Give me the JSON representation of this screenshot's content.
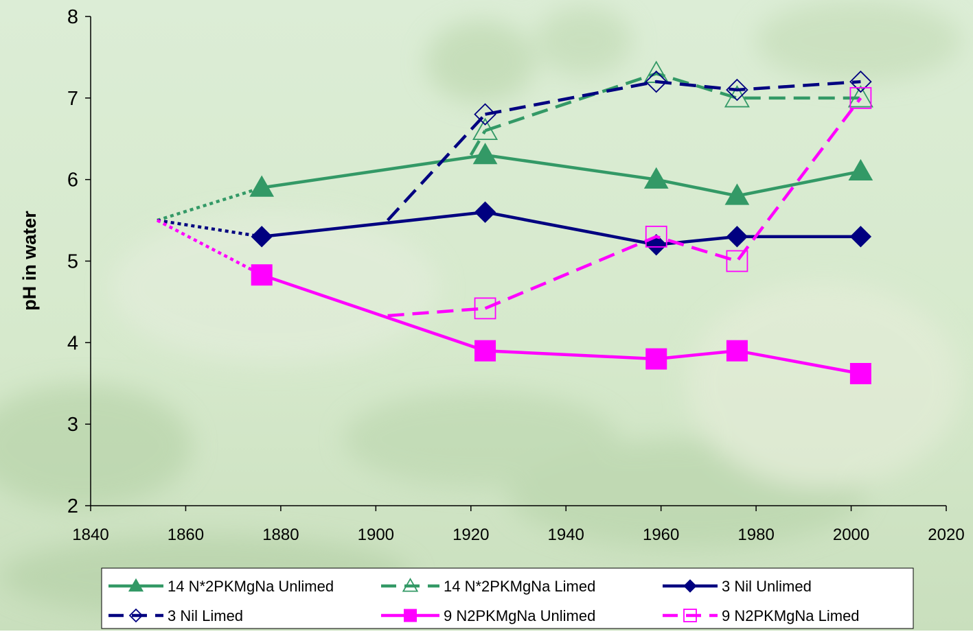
{
  "chart_data": {
    "type": "line",
    "ylabel": "pH in water",
    "xlim": [
      1840,
      2020
    ],
    "xticks": [
      1840,
      1860,
      1880,
      1900,
      1920,
      1940,
      1960,
      1980,
      2000,
      2020
    ],
    "ylim": [
      2,
      8
    ],
    "yticks": [
      2,
      3,
      4,
      5,
      6,
      7,
      8
    ],
    "grid": false,
    "legend": "bottom",
    "series": [
      {
        "name": "14 N*2PKMgNa Unlimed",
        "color": "#339966",
        "marker": "triangle",
        "filled": true,
        "dash": "solid",
        "lead_in": "dotted",
        "x": [
          1854,
          1876,
          1923,
          1959,
          1976,
          2002
        ],
        "values": [
          5.5,
          5.9,
          6.3,
          6.0,
          5.8,
          6.1
        ]
      },
      {
        "name": "14 N*2PKMgNa Limed",
        "color": "#339966",
        "marker": "triangle",
        "filled": false,
        "dash": "dashed",
        "lead_in": "dashed",
        "x": [
          1920,
          1923,
          1959,
          1976,
          2002
        ],
        "values": [
          6.3,
          6.6,
          7.3,
          7.0,
          7.0
        ]
      },
      {
        "name": "3 Nil Unlimed",
        "color": "#000080",
        "marker": "diamond",
        "filled": true,
        "dash": "solid",
        "lead_in": "dotted",
        "x": [
          1854,
          1876,
          1923,
          1959,
          1976,
          2002
        ],
        "values": [
          5.5,
          5.3,
          5.6,
          5.2,
          5.3,
          5.3
        ]
      },
      {
        "name": "3 Nil Limed",
        "color": "#000080",
        "marker": "diamond",
        "filled": false,
        "dash": "dashed",
        "lead_in": "dashed",
        "x": [
          1902.5,
          1923,
          1959,
          1976,
          2002
        ],
        "values": [
          5.5,
          6.8,
          7.2,
          7.1,
          7.2
        ]
      },
      {
        "name": "9 N2PKMgNa Unlimed",
        "color": "#ff00ff",
        "marker": "square",
        "filled": true,
        "dash": "solid",
        "lead_in": "dotted",
        "x": [
          1854,
          1876,
          1923,
          1959,
          1976,
          2002
        ],
        "values": [
          5.5,
          4.83,
          3.9,
          3.8,
          3.9,
          3.62
        ]
      },
      {
        "name": "9 N2PKMgNa Limed",
        "color": "#ff00ff",
        "marker": "square",
        "filled": false,
        "dash": "dashed",
        "lead_in": "dashed",
        "x": [
          1902.5,
          1923,
          1959,
          1976,
          2002
        ],
        "values": [
          4.33,
          4.42,
          5.3,
          5.0,
          7.0
        ]
      }
    ]
  }
}
